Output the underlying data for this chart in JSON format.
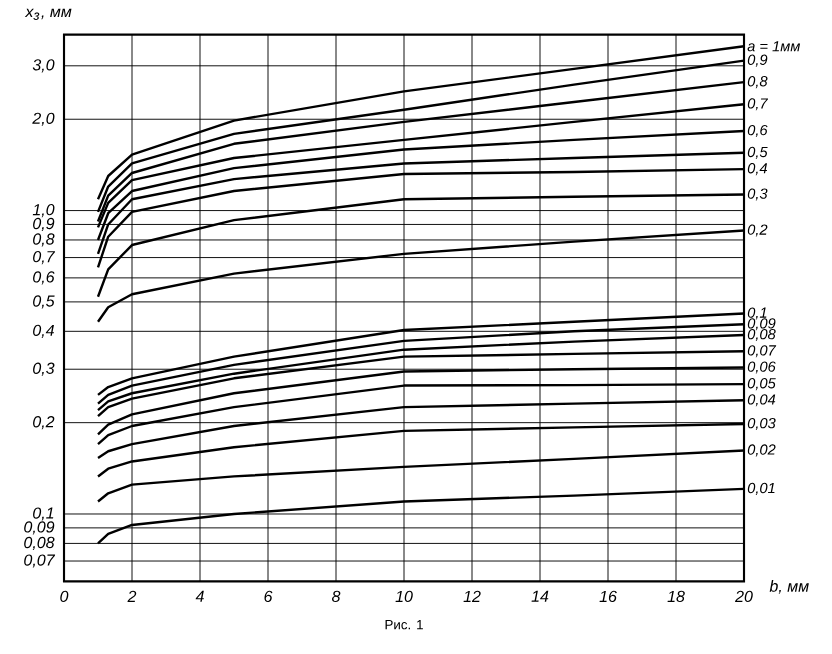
{
  "chart_data": {
    "type": "line",
    "xlabel": "b, мм",
    "ylabel": "x$_{з}$, мм",
    "annotations": [
      "Рис. 1"
    ],
    "log": "y",
    "grid": true,
    "legend": false,
    "marker": "none",
    "line_style": "solid",
    "xlim": [
      0,
      20
    ],
    "ylim": [
      0.06,
      3.8
    ],
    "xticks": [
      0,
      2,
      4,
      6,
      8,
      10,
      12,
      14,
      16,
      18,
      20
    ],
    "yticks": [
      {
        "value": 0.07,
        "label": "0,07"
      },
      {
        "value": 0.08,
        "label": "0,08"
      },
      {
        "value": 0.09,
        "label": "0,09"
      },
      {
        "value": 0.1,
        "label": "0,1"
      },
      {
        "value": 0.2,
        "label": "0,2"
      },
      {
        "value": 0.3,
        "label": "0,3"
      },
      {
        "value": 0.4,
        "label": "0,4"
      },
      {
        "value": 0.5,
        "label": "0,5"
      },
      {
        "value": 0.6,
        "label": "0,6"
      },
      {
        "value": 0.7,
        "label": "0,7"
      },
      {
        "value": 0.8,
        "label": "0,8"
      },
      {
        "value": 0.9,
        "label": "0,9"
      },
      {
        "value": 1.0,
        "label": "1,0"
      },
      {
        "value": 2.0,
        "label": "2,0"
      },
      {
        "value": 3.0,
        "label": "3,0"
      }
    ],
    "x": [
      1,
      1.3,
      2,
      5,
      10,
      15,
      20
    ],
    "series": [
      {
        "name": "a = 1мм",
        "color": "#000000",
        "values": [
          1.09,
          1.3,
          1.53,
          1.98,
          2.47,
          2.93,
          3.48
        ]
      },
      {
        "name": "0,9",
        "color": "#000000",
        "values": [
          0.99,
          1.2,
          1.43,
          1.79,
          2.15,
          2.6,
          3.12
        ]
      },
      {
        "name": "0,8",
        "color": "#000000",
        "values": [
          0.92,
          1.12,
          1.33,
          1.66,
          1.96,
          2.28,
          2.65
        ]
      },
      {
        "name": "0,7",
        "color": "#000000",
        "values": [
          0.88,
          1.06,
          1.26,
          1.49,
          1.71,
          1.96,
          2.24
        ]
      },
      {
        "name": "0,6",
        "color": "#000000",
        "values": [
          0.8,
          0.98,
          1.16,
          1.38,
          1.59,
          1.71,
          1.83
        ]
      },
      {
        "name": "0,5",
        "color": "#000000",
        "values": [
          0.72,
          0.9,
          1.09,
          1.27,
          1.43,
          1.49,
          1.55
        ]
      },
      {
        "name": "0,4",
        "color": "#000000",
        "values": [
          0.65,
          0.82,
          0.99,
          1.16,
          1.32,
          1.34,
          1.37
        ]
      },
      {
        "name": "0,3",
        "color": "#000000",
        "values": [
          0.52,
          0.64,
          0.77,
          0.93,
          1.09,
          1.11,
          1.13
        ]
      },
      {
        "name": "0,2",
        "color": "#000000",
        "values": [
          0.43,
          0.48,
          0.53,
          0.62,
          0.72,
          0.79,
          0.86
        ]
      },
      {
        "name": "0,1",
        "color": "#000000",
        "values": [
          0.247,
          0.262,
          0.28,
          0.33,
          0.404,
          0.43,
          0.458
        ]
      },
      {
        "name": "0,09",
        "color": "#000000",
        "values": [
          0.231,
          0.247,
          0.265,
          0.31,
          0.372,
          0.4,
          0.422
        ]
      },
      {
        "name": "0,08",
        "color": "#000000",
        "values": [
          0.22,
          0.235,
          0.25,
          0.29,
          0.348,
          0.37,
          0.389
        ]
      },
      {
        "name": "0,07",
        "color": "#000000",
        "values": [
          0.21,
          0.225,
          0.24,
          0.28,
          0.33,
          0.337,
          0.344
        ]
      },
      {
        "name": "0,06",
        "color": "#000000",
        "values": [
          0.183,
          0.197,
          0.213,
          0.25,
          0.295,
          0.3,
          0.304
        ]
      },
      {
        "name": "0,05",
        "color": "#000000",
        "values": [
          0.17,
          0.182,
          0.195,
          0.225,
          0.265,
          0.266,
          0.268
        ]
      },
      {
        "name": "0,04",
        "color": "#000000",
        "values": [
          0.153,
          0.161,
          0.17,
          0.195,
          0.225,
          0.231,
          0.237
        ]
      },
      {
        "name": "0,03",
        "color": "#000000",
        "values": [
          0.133,
          0.141,
          0.149,
          0.166,
          0.188,
          0.193,
          0.198
        ]
      },
      {
        "name": "0,02",
        "color": "#000000",
        "values": [
          0.11,
          0.117,
          0.125,
          0.133,
          0.143,
          0.152,
          0.162
        ]
      },
      {
        "name": "0,01",
        "color": "#000000",
        "values": [
          0.08,
          0.086,
          0.092,
          0.1,
          0.11,
          0.115,
          0.121
        ]
      }
    ]
  }
}
